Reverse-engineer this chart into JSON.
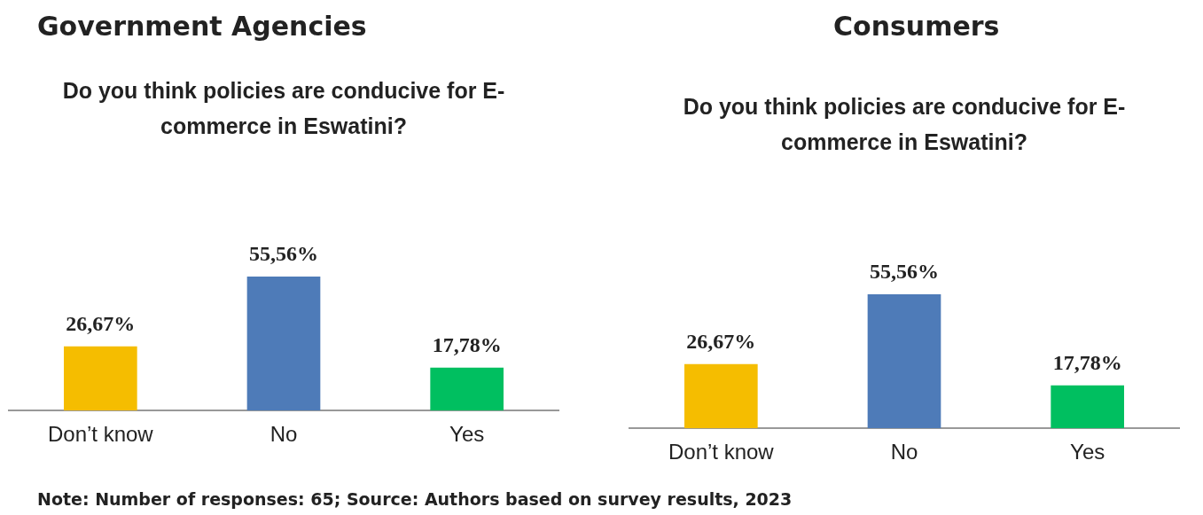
{
  "chart_data": [
    {
      "type": "bar",
      "title": "Government Agencies",
      "subtitle": "Do you think policies are conducive for E-commerce in Eswatini?",
      "categories": [
        "Don’t know",
        "No",
        "Yes"
      ],
      "values": [
        26.67,
        55.56,
        17.78
      ],
      "colors": [
        "#f5bd00",
        "#4e7bb8",
        "#00bf60"
      ],
      "value_labels": [
        "26,67%",
        "55,56%",
        "17,78%"
      ],
      "tick_labels": "x",
      "grid": false,
      "legend": false,
      "annotations": [
        "Note: Number of responses: 65; Source: Authors based on survey results, 2023"
      ]
    },
    {
      "type": "bar",
      "title": "Consumers",
      "subtitle": "Do you think policies are conducive for E-commerce in Eswatini?",
      "categories": [
        "Don’t know",
        "No",
        "Yes"
      ],
      "values": [
        26.67,
        55.56,
        17.78
      ],
      "colors": [
        "#f5bd00",
        "#4e7bb8",
        "#00bf60"
      ],
      "value_labels": [
        "26,67%",
        "55,56%",
        "17,78%"
      ],
      "tick_labels": "x",
      "grid": false,
      "legend": false
    }
  ]
}
